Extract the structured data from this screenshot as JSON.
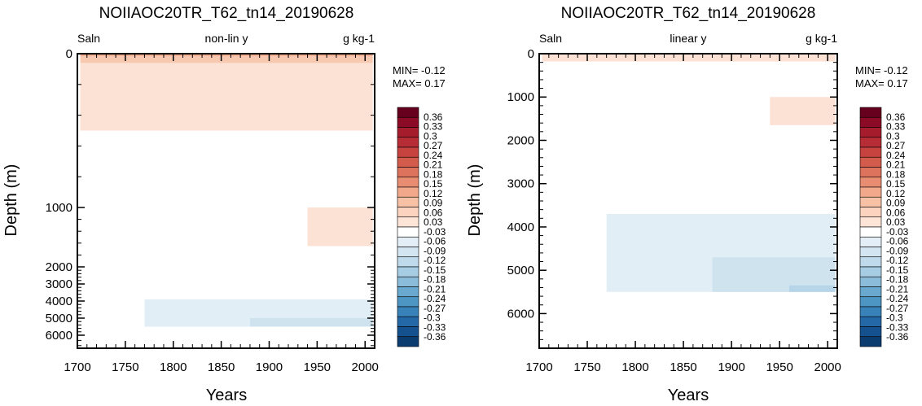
{
  "colorbar": {
    "labels": [
      "0.36",
      "0.33",
      "0.3",
      "0.27",
      "0.24",
      "0.21",
      "0.18",
      "0.15",
      "0.12",
      "0.09",
      "0.06",
      "0.03",
      "-0.03",
      "-0.06",
      "-0.09",
      "-0.12",
      "-0.15",
      "-0.18",
      "-0.21",
      "-0.24",
      "-0.27",
      "-0.3",
      "-0.33",
      "-0.36"
    ],
    "colors": [
      "#67001f",
      "#8b0a25",
      "#a51d2d",
      "#b72d36",
      "#c6433f",
      "#d35b4c",
      "#de735d",
      "#e98d72",
      "#f2a98b",
      "#f7c1a6",
      "#fbd3bf",
      "#fde4d7",
      "#ffffff",
      "#e3eef6",
      "#d2e5f1",
      "#bfdaeb",
      "#a7cde4",
      "#8bbdda",
      "#6aa9cf",
      "#4d96c4",
      "#3882b9",
      "#2468a8",
      "#15508f",
      "#0b3c70"
    ]
  },
  "chart_data": [
    {
      "type": "contour",
      "title": "NOIIAOC20TR_T62_tn14_20190628",
      "left_label": "Saln",
      "center_label": "non-lin y",
      "right_label": "g kg-1",
      "min_text": "MIN= -0.12",
      "max_text": "MAX=  0.17",
      "xlabel": "Years",
      "ylabel": "Depth (m)",
      "xlim": [
        1700,
        2010
      ],
      "ylim": [
        0,
        6500
      ],
      "y_scale": "non-linear (shallow depths expanded)",
      "x_ticks": [
        "1700",
        "1750",
        "1800",
        "1850",
        "1900",
        "1950",
        "2000"
      ],
      "y_ticks": [
        "0",
        "1000",
        "2000",
        "3000",
        "4000",
        "5000",
        "6000"
      ],
      "regions": [
        {
          "level": "0.03 to 0.06",
          "x_range": [
            1703,
            2008
          ],
          "depth_range": [
            0,
            500
          ]
        },
        {
          "level": "0.06 to 0.09",
          "x_range": [
            1703,
            2008
          ],
          "depth_range": [
            0,
            60
          ]
        },
        {
          "level": "0.09 to 0.12",
          "x_range": [
            1703,
            2008
          ],
          "depth_range": [
            0,
            15
          ]
        },
        {
          "level": "0.03 to 0.06",
          "x_range": [
            1940,
            2008
          ],
          "depth_range": [
            1000,
            1650
          ]
        },
        {
          "level": "-0.06 to -0.03",
          "x_range": [
            1770,
            2008
          ],
          "depth_range": [
            3900,
            5500
          ]
        },
        {
          "level": "-0.09 to -0.06",
          "x_range": [
            1880,
            2008
          ],
          "depth_range": [
            5000,
            5500
          ]
        }
      ]
    },
    {
      "type": "contour",
      "title": "NOIIAOC20TR_T62_tn14_20190628",
      "left_label": "Saln",
      "center_label": "linear y",
      "right_label": "g kg-1",
      "min_text": "MIN= -0.12",
      "max_text": "MAX=  0.17",
      "xlabel": "Years",
      "ylabel": "Depth (m)",
      "xlim": [
        1700,
        2010
      ],
      "ylim": [
        0,
        6800
      ],
      "y_scale": "linear",
      "x_ticks": [
        "1700",
        "1750",
        "1800",
        "1850",
        "1900",
        "1950",
        "2000"
      ],
      "y_ticks": [
        "0",
        "1000",
        "2000",
        "3000",
        "4000",
        "5000",
        "6000"
      ],
      "regions": [
        {
          "level": "0.03 to 0.06",
          "x_range": [
            1703,
            2008
          ],
          "depth_range": [
            0,
            180
          ]
        },
        {
          "level": "0.03 to 0.06",
          "x_range": [
            1940,
            2008
          ],
          "depth_range": [
            1000,
            1650
          ]
        },
        {
          "level": "-0.06 to -0.03",
          "x_range": [
            1770,
            2008
          ],
          "depth_range": [
            3700,
            5500
          ]
        },
        {
          "level": "-0.09 to -0.06",
          "x_range": [
            1880,
            2008
          ],
          "depth_range": [
            4700,
            5500
          ]
        },
        {
          "level": "-0.12 to -0.09",
          "x_range": [
            1960,
            2008
          ],
          "depth_range": [
            5350,
            5500
          ]
        }
      ]
    }
  ]
}
